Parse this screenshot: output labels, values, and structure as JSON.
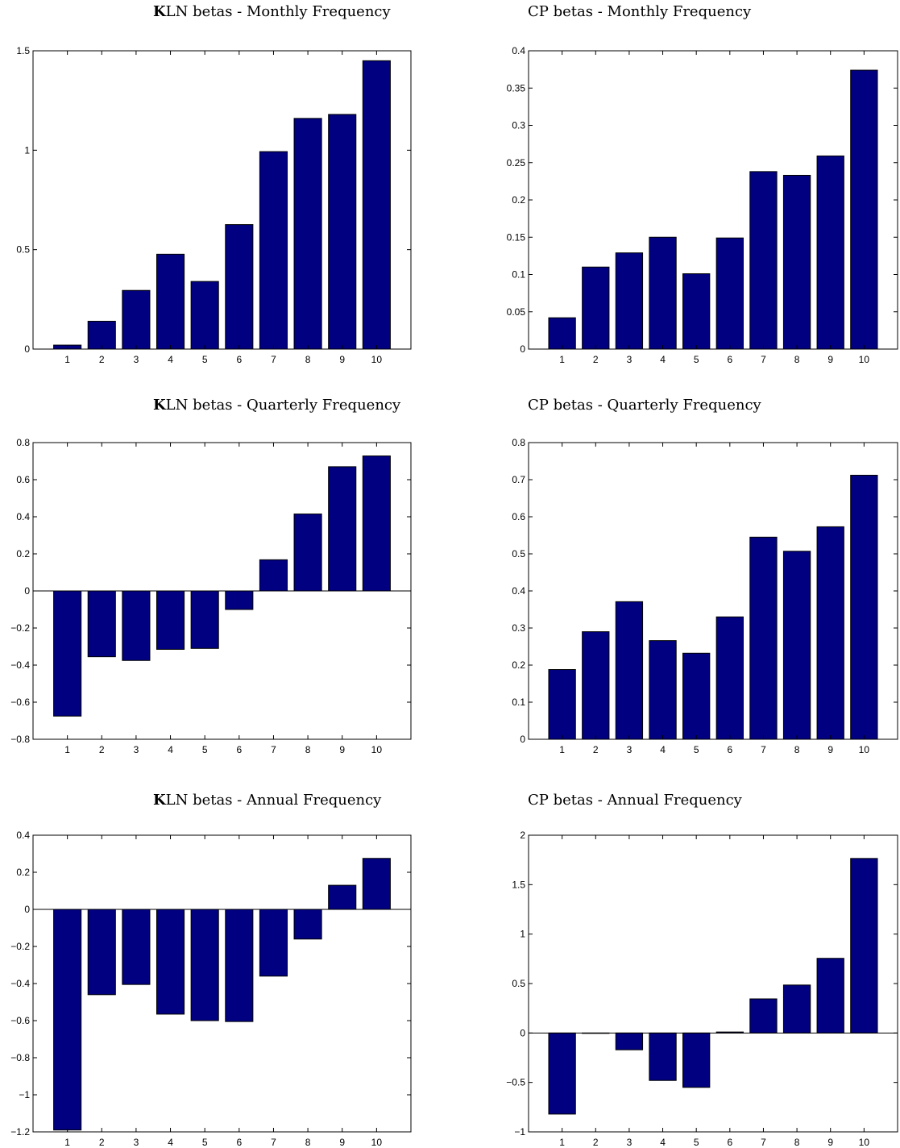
{
  "chart_data": [
    {
      "id": "kln-monthly",
      "type": "bar",
      "title_bold": "K",
      "title_rest": "LN betas - Monthly Frequency",
      "categories": [
        "1",
        "2",
        "3",
        "4",
        "5",
        "6",
        "7",
        "8",
        "9",
        "10"
      ],
      "values": [
        0.02,
        0.14,
        0.295,
        0.477,
        0.34,
        0.626,
        0.993,
        1.16,
        1.18,
        1.45
      ],
      "ylim": [
        0,
        1.5
      ],
      "yticks": [
        0,
        0.5,
        1,
        1.5
      ],
      "ytick_labels": [
        "0",
        "0.5",
        "1",
        "1.5"
      ],
      "color": "#000080",
      "xlabel": "",
      "ylabel": ""
    },
    {
      "id": "cp-monthly",
      "type": "bar",
      "title_bold": "",
      "title_rest": "CP betas - Monthly Frequency",
      "categories": [
        "1",
        "2",
        "3",
        "4",
        "5",
        "6",
        "7",
        "8",
        "9",
        "10"
      ],
      "values": [
        0.042,
        0.11,
        0.129,
        0.15,
        0.101,
        0.149,
        0.238,
        0.233,
        0.259,
        0.374
      ],
      "ylim": [
        0,
        0.4
      ],
      "yticks": [
        0,
        0.05,
        0.1,
        0.15,
        0.2,
        0.25,
        0.3,
        0.35,
        0.4
      ],
      "ytick_labels": [
        "0",
        "0.05",
        "0.1",
        "0.15",
        "0.2",
        "0.25",
        "0.3",
        "0.35",
        "0.4"
      ],
      "color": "#000080",
      "xlabel": "",
      "ylabel": ""
    },
    {
      "id": "kln-quarterly",
      "type": "bar",
      "title_bold": "K",
      "title_rest": "LN betas - Quarterly Frequency",
      "categories": [
        "1",
        "2",
        "3",
        "4",
        "5",
        "6",
        "7",
        "8",
        "9",
        "10"
      ],
      "values": [
        -0.675,
        -0.355,
        -0.375,
        -0.315,
        -0.31,
        -0.1,
        0.168,
        0.415,
        0.67,
        0.728
      ],
      "ylim": [
        -0.8,
        0.8
      ],
      "yticks": [
        -0.8,
        -0.6,
        -0.4,
        -0.2,
        0,
        0.2,
        0.4,
        0.6,
        0.8
      ],
      "ytick_labels": [
        "−0.8",
        "−0.6",
        "−0.4",
        "−0.2",
        "0",
        "0.2",
        "0.4",
        "0.6",
        "0.8"
      ],
      "color": "#000080",
      "xlabel": "",
      "ylabel": ""
    },
    {
      "id": "cp-quarterly",
      "type": "bar",
      "title_bold": "",
      "title_rest": "CP betas - Quarterly Frequency",
      "categories": [
        "1",
        "2",
        "3",
        "4",
        "5",
        "6",
        "7",
        "8",
        "9",
        "10"
      ],
      "values": [
        0.188,
        0.29,
        0.371,
        0.266,
        0.232,
        0.33,
        0.545,
        0.507,
        0.573,
        0.712
      ],
      "ylim": [
        0,
        0.8
      ],
      "yticks": [
        0,
        0.1,
        0.2,
        0.3,
        0.4,
        0.5,
        0.6,
        0.7,
        0.8
      ],
      "ytick_labels": [
        "0",
        "0.1",
        "0.2",
        "0.3",
        "0.4",
        "0.5",
        "0.6",
        "0.7",
        "0.8"
      ],
      "color": "#000080",
      "xlabel": "",
      "ylabel": ""
    },
    {
      "id": "kln-annual",
      "type": "bar",
      "title_bold": "K",
      "title_rest": "LN betas - Annual Frequency",
      "categories": [
        "1",
        "2",
        "3",
        "4",
        "5",
        "6",
        "7",
        "8",
        "9",
        "10"
      ],
      "values": [
        -1.19,
        -0.46,
        -0.405,
        -0.565,
        -0.6,
        -0.605,
        -0.36,
        -0.16,
        0.13,
        0.275
      ],
      "ylim": [
        -1.2,
        0.4
      ],
      "yticks": [
        -1.2,
        -1,
        -0.8,
        -0.6,
        -0.4,
        -0.2,
        0,
        0.2,
        0.4
      ],
      "ytick_labels": [
        "−1.2",
        "−1",
        "−0.8",
        "−0.6",
        "−0.4",
        "−0.2",
        "0",
        "0.2",
        "0.4"
      ],
      "color": "#000080",
      "xlabel": "",
      "ylabel": ""
    },
    {
      "id": "cp-annual",
      "type": "bar",
      "title_bold": "",
      "title_rest": "CP betas - Annual Frequency",
      "categories": [
        "1",
        "2",
        "3",
        "4",
        "5",
        "6",
        "7",
        "8",
        "9",
        "10"
      ],
      "values": [
        -0.82,
        0.0,
        -0.17,
        -0.48,
        -0.55,
        0.01,
        0.345,
        0.485,
        0.755,
        1.765
      ],
      "ylim": [
        -1,
        2
      ],
      "yticks": [
        -1,
        -0.5,
        0,
        0.5,
        1,
        1.5,
        2
      ],
      "ytick_labels": [
        "−1",
        "−0.5",
        "0",
        "0.5",
        "1",
        "1.5",
        "2"
      ],
      "color": "#000080",
      "xlabel": "",
      "ylabel": ""
    }
  ]
}
